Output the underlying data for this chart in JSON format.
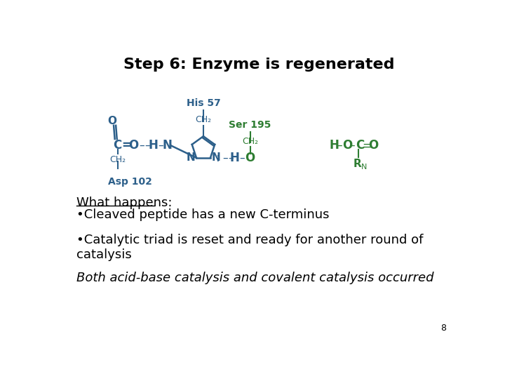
{
  "title": "Step 6: Enzyme is regenerated",
  "title_fontsize": 16,
  "background_color": "#ffffff",
  "text_color": "#000000",
  "teal": "#2c5f8a",
  "green": "#2e7d32",
  "what_happens_label": "What happens:",
  "bullet1": "•Cleaved peptide has a new C-terminus",
  "bullet2": "•Catalytic triad is reset and ready for another round of\ncatalysis",
  "italic_line": "Both acid-base catalysis and covalent catalysis occurred",
  "page_number": "8",
  "asp_label": "Asp 102",
  "his_label": "His 57",
  "ser_label": "Ser 195"
}
